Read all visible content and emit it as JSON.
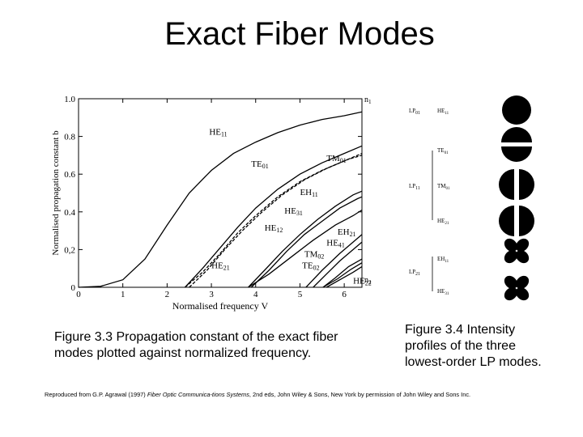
{
  "slide": {
    "title": "Exact Fiber Modes",
    "caption_left": "Figure 3.3 Propagation constant of the exact fiber modes plotted against normalized frequency.",
    "caption_right": "Figure 3.4 Intensity profiles of the three lowest-order LP modes.",
    "attribution_prefix": "Reproduced from G.P. Agrawal (1997) ",
    "attribution_book": "Fiber Optic Communica-tions Systems",
    "attribution_suffix": ", 2nd eds, John Wiley & Sons, New York by permission of John Wiley and Sons Inc."
  },
  "chart_data": {
    "type": "line",
    "xlabel": "Normalised frequency V",
    "ylabel": "Normalised propagation constant b",
    "xlim": [
      0,
      6.4
    ],
    "ylim": [
      0,
      1.0
    ],
    "xticks": [
      "0",
      "1",
      "2",
      "3",
      "4",
      "5",
      "6"
    ],
    "yticks": [
      "0",
      "0,2",
      "0.4",
      "0.6",
      "0.8",
      "1.0"
    ],
    "right_axis_labels": [
      "n1",
      "n2"
    ],
    "series": [
      {
        "name": "HE11",
        "x": [
          0,
          0.5,
          1,
          1.5,
          2,
          2.5,
          3,
          3.5,
          4,
          4.5,
          5,
          5.5,
          6,
          6.4
        ],
        "y": [
          0,
          0.005,
          0.04,
          0.15,
          0.33,
          0.5,
          0.62,
          0.71,
          0.77,
          0.82,
          0.86,
          0.89,
          0.91,
          0.93
        ]
      },
      {
        "name": "TE01",
        "x": [
          2.405,
          2.8,
          3.2,
          3.6,
          4,
          4.5,
          5,
          5.5,
          6,
          6.4
        ],
        "y": [
          0,
          0.1,
          0.21,
          0.32,
          0.42,
          0.52,
          0.6,
          0.66,
          0.71,
          0.75
        ]
      },
      {
        "name": "TM01",
        "x": [
          2.405,
          2.8,
          3.2,
          3.6,
          4,
          4.5,
          5,
          5.5,
          6,
          6.4
        ],
        "y": [
          0,
          0.08,
          0.18,
          0.29,
          0.38,
          0.48,
          0.56,
          0.62,
          0.67,
          0.71
        ]
      },
      {
        "name": "HE21",
        "x": [
          2.5,
          2.9,
          3.3,
          3.7,
          4.1,
          4.6,
          5.1,
          5.6,
          6.1,
          6.4
        ],
        "y": [
          0,
          0.09,
          0.2,
          0.3,
          0.39,
          0.49,
          0.57,
          0.63,
          0.68,
          0.7
        ]
      },
      {
        "name": "EH11",
        "x": [
          3.832,
          4.2,
          4.6,
          5,
          5.4,
          5.8,
          6.2,
          6.4
        ],
        "y": [
          0,
          0.09,
          0.19,
          0.28,
          0.36,
          0.43,
          0.49,
          0.51
        ]
      },
      {
        "name": "HE31",
        "x": [
          3.9,
          4.3,
          4.7,
          5.1,
          5.5,
          5.9,
          6.3,
          6.4
        ],
        "y": [
          0,
          0.09,
          0.19,
          0.28,
          0.35,
          0.42,
          0.47,
          0.48
        ]
      },
      {
        "name": "HE12",
        "x": [
          3.832,
          4.3,
          4.8,
          5.3,
          5.8,
          6.2,
          6.4
        ],
        "y": [
          0,
          0.07,
          0.16,
          0.25,
          0.33,
          0.38,
          0.41
        ]
      },
      {
        "name": "EH21",
        "x": [
          5.136,
          5.5,
          5.9,
          6.2,
          6.4
        ],
        "y": [
          0,
          0.09,
          0.18,
          0.24,
          0.28
        ]
      },
      {
        "name": "HE41",
        "x": [
          5.3,
          5.6,
          5.9,
          6.2,
          6.4
        ],
        "y": [
          0,
          0.07,
          0.14,
          0.2,
          0.24
        ]
      },
      {
        "name": "TM02",
        "x": [
          5.52,
          5.8,
          6.1,
          6.4
        ],
        "y": [
          0,
          0.05,
          0.11,
          0.15
        ]
      },
      {
        "name": "TE02",
        "x": [
          5.52,
          5.85,
          6.15,
          6.4
        ],
        "y": [
          0,
          0.045,
          0.095,
          0.13
        ]
      },
      {
        "name": "HE22",
        "x": [
          5.6,
          5.9,
          6.2,
          6.4
        ],
        "y": [
          0,
          0.04,
          0.08,
          0.11
        ]
      }
    ],
    "annotations": [
      {
        "base": "HE",
        "sub": "11",
        "x": 2.95,
        "y": 0.81
      },
      {
        "base": "TE",
        "sub": "01",
        "x": 3.9,
        "y": 0.64
      },
      {
        "base": "TM",
        "sub": "01",
        "x": 5.6,
        "y": 0.67
      },
      {
        "base": "EH",
        "sub": "11",
        "x": 5.0,
        "y": 0.49
      },
      {
        "base": "HE",
        "sub": "31",
        "x": 4.65,
        "y": 0.39
      },
      {
        "base": "HE",
        "sub": "12",
        "x": 4.2,
        "y": 0.3
      },
      {
        "base": "EH",
        "sub": "21",
        "x": 5.85,
        "y": 0.28
      },
      {
        "base": "HE",
        "sub": "41",
        "x": 5.6,
        "y": 0.22
      },
      {
        "base": "TM",
        "sub": "02",
        "x": 5.1,
        "y": 0.16
      },
      {
        "base": "TE",
        "sub": "02",
        "x": 5.05,
        "y": 0.1
      },
      {
        "base": "HE",
        "sub": "21",
        "x": 3.0,
        "y": 0.1
      },
      {
        "base": "HE",
        "sub": "22",
        "x": 6.2,
        "y": 0.02
      }
    ]
  },
  "figure_3_4": {
    "rows": [
      {
        "lp": "LP",
        "lp_sub": "01",
        "modes": [
          {
            "base": "HE",
            "sub": "11"
          }
        ]
      },
      {
        "lp": "LP",
        "lp_sub": "11",
        "modes": [
          {
            "base": "TE",
            "sub": "01"
          },
          {
            "base": "TM",
            "sub": "01"
          },
          {
            "base": "HE",
            "sub": "21"
          }
        ]
      },
      {
        "lp": "LP",
        "lp_sub": "21",
        "modes": [
          {
            "base": "EH",
            "sub": "11"
          },
          {
            "base": "HE",
            "sub": "31"
          }
        ]
      }
    ]
  }
}
